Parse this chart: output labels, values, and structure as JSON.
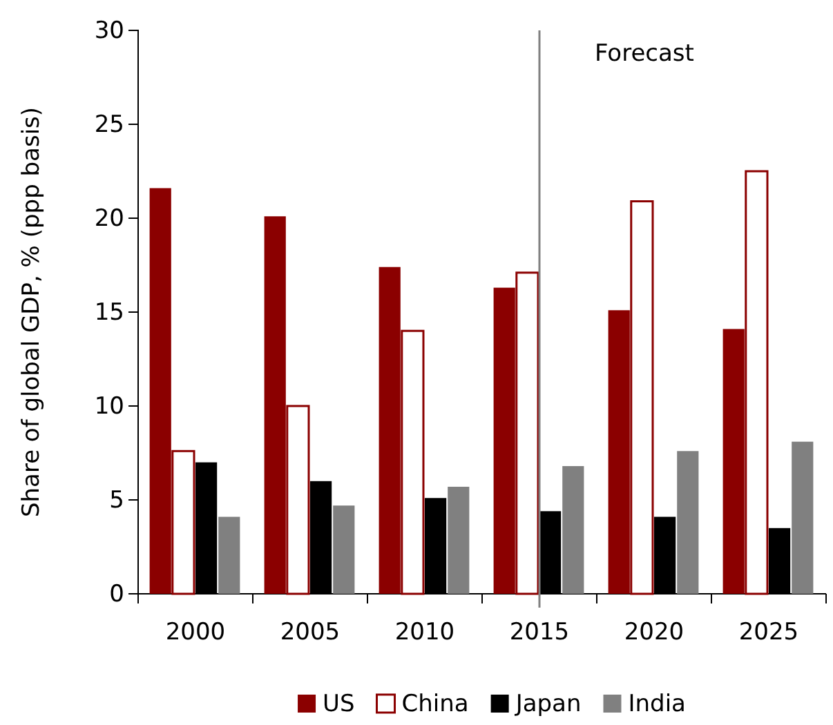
{
  "chart_data": {
    "type": "bar",
    "ylabel": "Share of global GDP, % (ppp basis)",
    "categories": [
      "2000",
      "2005",
      "2010",
      "2015",
      "2020",
      "2025"
    ],
    "series": [
      {
        "name": "US",
        "color": "#8b0000",
        "values": [
          21.6,
          20.1,
          17.4,
          16.3,
          15.1,
          14.1
        ]
      },
      {
        "name": "China",
        "color": "#ffffff",
        "values": [
          7.6,
          10.0,
          14.0,
          17.1,
          20.9,
          22.5
        ]
      },
      {
        "name": "Japan",
        "color": "#000000",
        "values": [
          7.0,
          6.0,
          5.1,
          4.4,
          4.1,
          3.5
        ]
      },
      {
        "name": "India",
        "color": "#808080",
        "values": [
          4.1,
          4.7,
          5.7,
          6.8,
          7.6,
          8.1
        ]
      }
    ],
    "ylim": [
      0,
      30
    ],
    "yticks": [
      0,
      5,
      10,
      15,
      20,
      25,
      30
    ],
    "legend": "bottom",
    "annotations": [
      "Forecast"
    ]
  }
}
